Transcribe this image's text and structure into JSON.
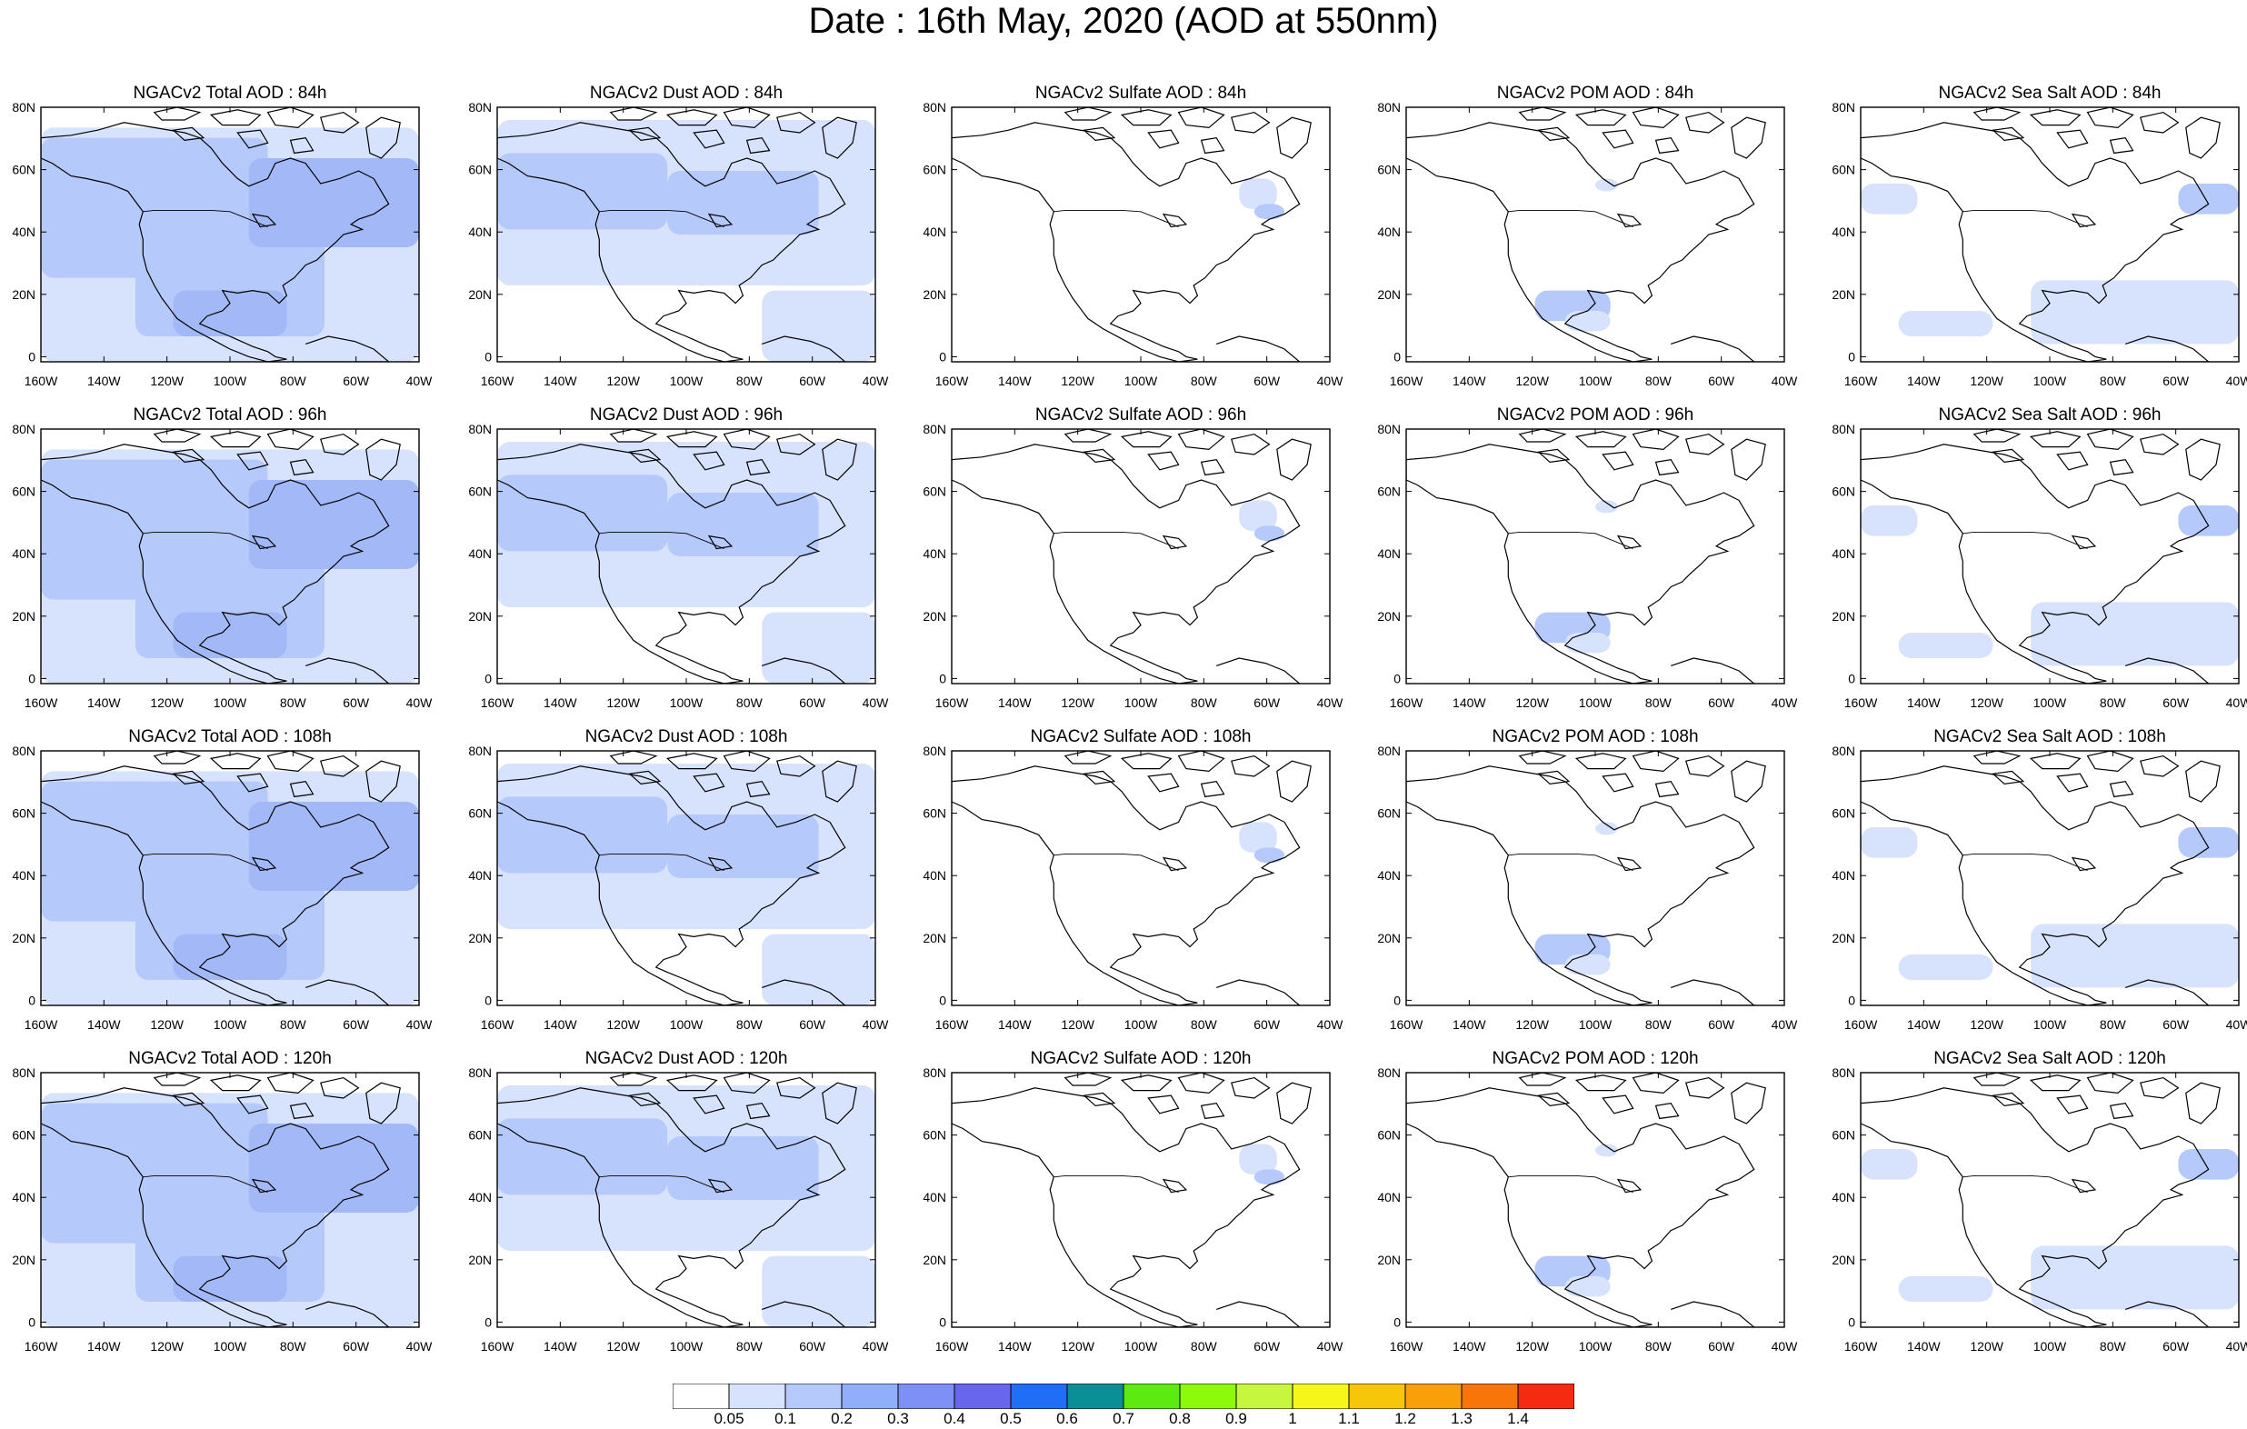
{
  "title": "Date : 16th May, 2020 (AOD at 550nm)",
  "map": {
    "lat_ticks": [
      "80N",
      "60N",
      "40N",
      "20N",
      "0"
    ],
    "lon_ticks": [
      "160W",
      "140W",
      "120W",
      "100W",
      "80W",
      "60W",
      "40W"
    ]
  },
  "colors": {
    "background": "#ffffff",
    "coast": "#000000"
  },
  "panels": [
    {
      "title": "NGACv2 Total AOD : 84h",
      "variable": "total",
      "lead": "84h"
    },
    {
      "title": "NGACv2 Dust AOD : 84h",
      "variable": "dust",
      "lead": "84h"
    },
    {
      "title": "NGACv2 Sulfate AOD : 84h",
      "variable": "sulfate",
      "lead": "84h"
    },
    {
      "title": "NGACv2 POM AOD : 84h",
      "variable": "pom",
      "lead": "84h"
    },
    {
      "title": "NGACv2 Sea Salt AOD : 84h",
      "variable": "seasalt",
      "lead": "84h"
    },
    {
      "title": "NGACv2 Total AOD : 96h",
      "variable": "total",
      "lead": "96h"
    },
    {
      "title": "NGACv2 Dust AOD : 96h",
      "variable": "dust",
      "lead": "96h"
    },
    {
      "title": "NGACv2 Sulfate AOD : 96h",
      "variable": "sulfate",
      "lead": "96h"
    },
    {
      "title": "NGACv2 POM AOD : 96h",
      "variable": "pom",
      "lead": "96h"
    },
    {
      "title": "NGACv2 Sea Salt AOD : 96h",
      "variable": "seasalt",
      "lead": "96h"
    },
    {
      "title": "NGACv2 Total AOD : 108h",
      "variable": "total",
      "lead": "108h"
    },
    {
      "title": "NGACv2 Dust AOD : 108h",
      "variable": "dust",
      "lead": "108h"
    },
    {
      "title": "NGACv2 Sulfate AOD : 108h",
      "variable": "sulfate",
      "lead": "108h"
    },
    {
      "title": "NGACv2 POM AOD : 108h",
      "variable": "pom",
      "lead": "108h"
    },
    {
      "title": "NGACv2 Sea Salt AOD : 108h",
      "variable": "seasalt",
      "lead": "108h"
    },
    {
      "title": "NGACv2 Total AOD : 120h",
      "variable": "total",
      "lead": "120h"
    },
    {
      "title": "NGACv2 Dust AOD : 120h",
      "variable": "dust",
      "lead": "120h"
    },
    {
      "title": "NGACv2 Sulfate AOD : 120h",
      "variable": "sulfate",
      "lead": "120h"
    },
    {
      "title": "NGACv2 POM AOD : 120h",
      "variable": "pom",
      "lead": "120h"
    },
    {
      "title": "NGACv2 Sea Salt  AOD : 120h",
      "variable": "seasalt",
      "lead": "120h"
    }
  ],
  "colorbar": {
    "labels": [
      "0.05",
      "0.1",
      "0.2",
      "0.3",
      "0.4",
      "0.5",
      "0.6",
      "0.7",
      "0.8",
      "0.9",
      "1",
      "1.1",
      "1.2",
      "1.3",
      "1.4"
    ],
    "colors": [
      "#ffffff",
      "#d7e3fc",
      "#b5c9fa",
      "#91aefa",
      "#7d90f6",
      "#6766ec",
      "#1f6ef5",
      "#0a8f96",
      "#5dea10",
      "#8cfa0a",
      "#c6f73e",
      "#f7f61a",
      "#f7c50a",
      "#f99f0a",
      "#f8750a",
      "#f52a10"
    ]
  }
}
